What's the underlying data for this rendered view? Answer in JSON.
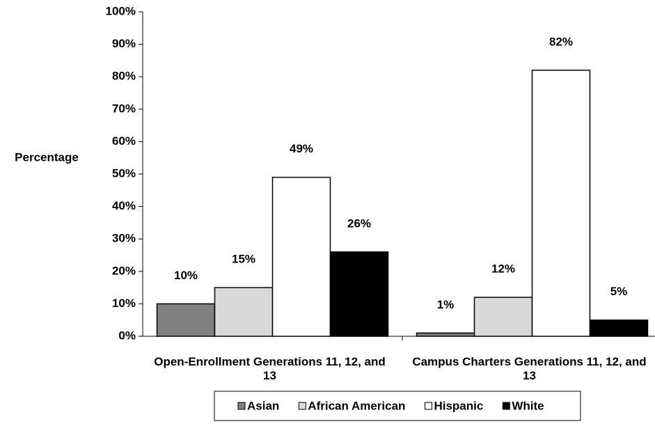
{
  "chart_data": {
    "type": "bar",
    "y_label": "Percentage",
    "categories": [
      "Open-Enrollment Generations 11, 12, and 13",
      "Campus Charters Generations 11, 12, and 13"
    ],
    "series": [
      {
        "name": "Asian",
        "color": "#808080",
        "values": [
          10,
          1
        ],
        "value_labels": [
          "10%",
          "1%"
        ]
      },
      {
        "name": "African American",
        "color": "#d9d9d9",
        "values": [
          15,
          12
        ],
        "value_labels": [
          "15%",
          "12%"
        ]
      },
      {
        "name": "Hispanic",
        "color": "#ffffff",
        "values": [
          49,
          82
        ],
        "value_labels": [
          "49%",
          "82%"
        ]
      },
      {
        "name": "White",
        "color": "#000000",
        "values": [
          26,
          5
        ],
        "value_labels": [
          "26%",
          "5%"
        ]
      }
    ],
    "ylim": [
      0,
      100
    ],
    "yticks": [
      {
        "value": 0,
        "label": "0%"
      },
      {
        "value": 10,
        "label": "10%"
      },
      {
        "value": 20,
        "label": "20%"
      },
      {
        "value": 30,
        "label": "30%"
      },
      {
        "value": 40,
        "label": "40%"
      },
      {
        "value": 50,
        "label": "50%"
      },
      {
        "value": 60,
        "label": "60%"
      },
      {
        "value": 70,
        "label": "70%"
      },
      {
        "value": 80,
        "label": "80%"
      },
      {
        "value": 90,
        "label": "90%"
      },
      {
        "value": 100,
        "label": "100%"
      }
    ],
    "grid": false,
    "legend": "bottom"
  }
}
